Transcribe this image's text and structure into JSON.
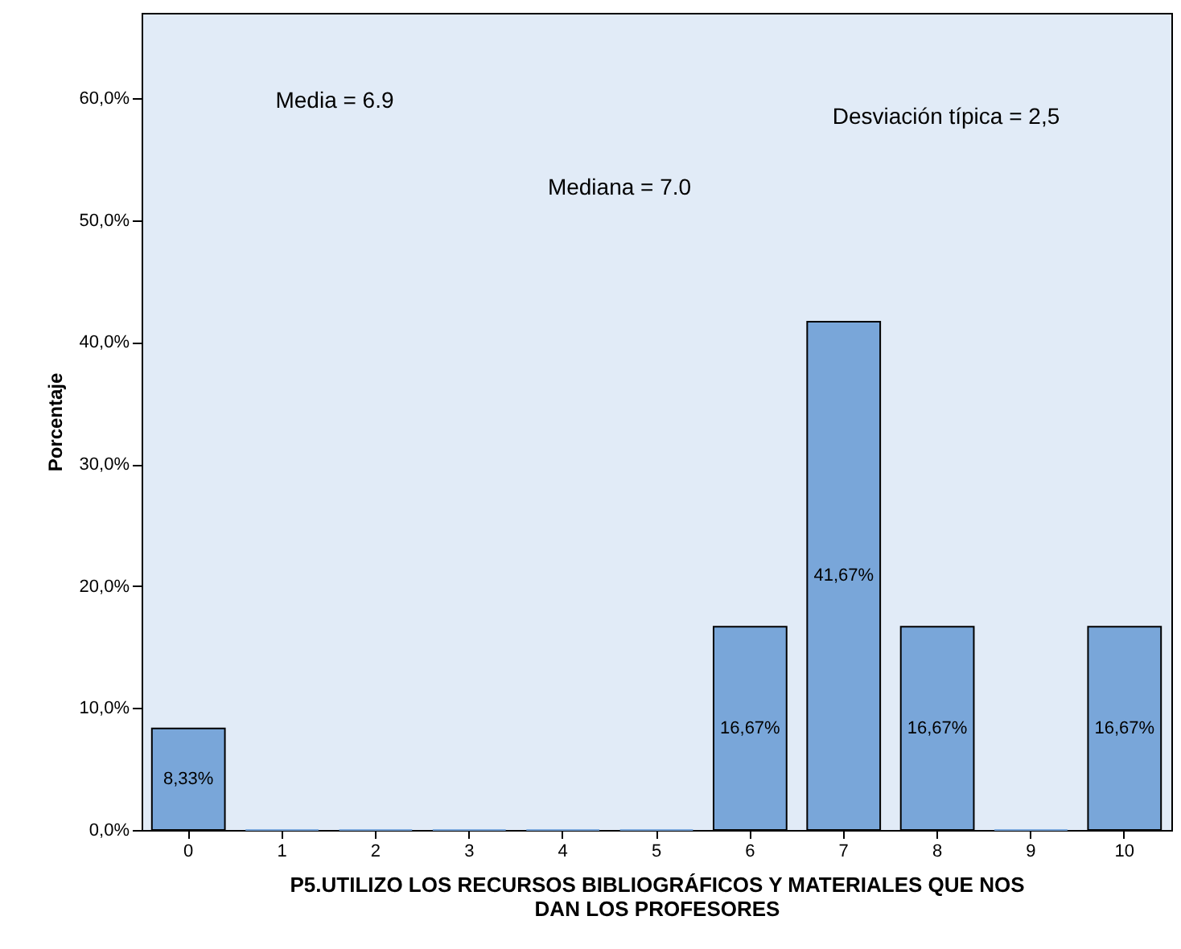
{
  "chart_data": {
    "type": "bar",
    "xlabel": "P5.UTILIZO LOS RECURSOS BIBLIOGRÁFICOS Y MATERIALES QUE NOS DAN LOS PROFESORES",
    "ylabel": "Porcentaje",
    "categories": [
      "0",
      "1",
      "2",
      "3",
      "4",
      "5",
      "6",
      "7",
      "8",
      "9",
      "10"
    ],
    "values": [
      8.33,
      0,
      0,
      0,
      0,
      0,
      16.67,
      41.67,
      16.67,
      0,
      16.67
    ],
    "value_labels": [
      "8,33%",
      null,
      null,
      null,
      null,
      null,
      "16,67%",
      "41,67%",
      "16,67%",
      null,
      "16,67%"
    ],
    "color": "#79a6d9",
    "ylim": [
      0,
      67
    ],
    "yticks": [
      {
        "value": 0,
        "label": "0,0%"
      },
      {
        "value": 10,
        "label": "10,0%"
      },
      {
        "value": 20,
        "label": "20,0%"
      },
      {
        "value": 30,
        "label": "30,0%"
      },
      {
        "value": 40,
        "label": "40,0%"
      },
      {
        "value": 50,
        "label": "50,0%"
      },
      {
        "value": 60,
        "label": "60,0%"
      }
    ],
    "grid": false,
    "annotations": [
      "Media = 6.9",
      "Mediana = 7.0",
      "Desviación típica = 2,5"
    ]
  }
}
